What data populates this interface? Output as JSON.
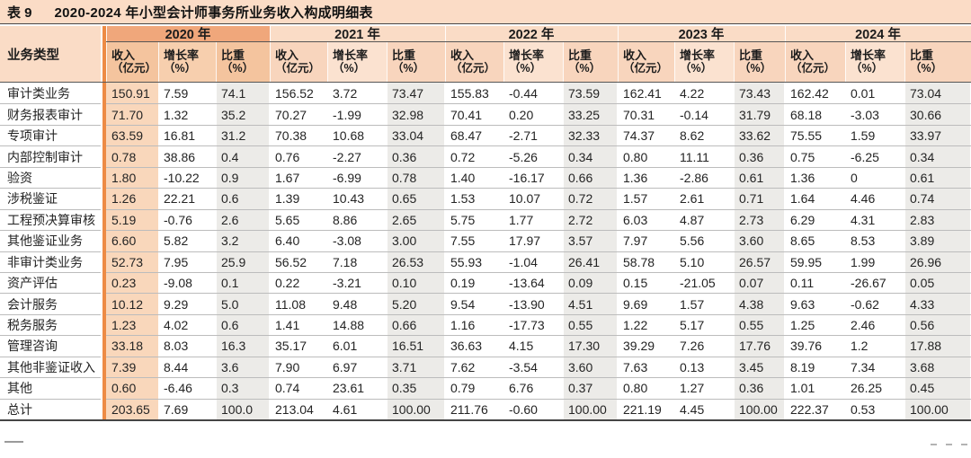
{
  "title": {
    "prefix": "表 9",
    "text": "2020-2024 年小型会计师事务所业务收入构成明细表"
  },
  "table": {
    "corner_header": "业务类型",
    "years": [
      "2020 年",
      "2021 年",
      "2022 年",
      "2023 年",
      "2024 年"
    ],
    "sub_columns": [
      {
        "line1": "收入",
        "line2": "（亿元）"
      },
      {
        "line1": "增长率",
        "line2": "（%）"
      },
      {
        "line1": "比重",
        "line2": "（%）"
      }
    ],
    "rows": [
      {
        "label": "审计类业务",
        "values": [
          "150.91",
          "7.59",
          "74.1",
          "156.52",
          "3.72",
          "73.47",
          "155.83",
          "-0.44",
          "73.59",
          "162.41",
          "4.22",
          "73.43",
          "162.42",
          "0.01",
          "73.04"
        ]
      },
      {
        "label": "财务报表审计",
        "values": [
          "71.70",
          "1.32",
          "35.2",
          "70.27",
          "-1.99",
          "32.98",
          "70.41",
          "0.20",
          "33.25",
          "70.31",
          "-0.14",
          "31.79",
          "68.18",
          "-3.03",
          "30.66"
        ]
      },
      {
        "label": "专项审计",
        "values": [
          "63.59",
          "16.81",
          "31.2",
          "70.38",
          "10.68",
          "33.04",
          "68.47",
          "-2.71",
          "32.33",
          "74.37",
          "8.62",
          "33.62",
          "75.55",
          "1.59",
          "33.97"
        ]
      },
      {
        "label": "内部控制审计",
        "values": [
          "0.78",
          "38.86",
          "0.4",
          "0.76",
          "-2.27",
          "0.36",
          "0.72",
          "-5.26",
          "0.34",
          "0.80",
          "11.11",
          "0.36",
          "0.75",
          "-6.25",
          "0.34"
        ]
      },
      {
        "label": "验资",
        "values": [
          "1.80",
          "-10.22",
          "0.9",
          "1.67",
          "-6.99",
          "0.78",
          "1.40",
          "-16.17",
          "0.66",
          "1.36",
          "-2.86",
          "0.61",
          "1.36",
          "0",
          "0.61"
        ]
      },
      {
        "label": "涉税鉴证",
        "values": [
          "1.26",
          "22.21",
          "0.6",
          "1.39",
          "10.43",
          "0.65",
          "1.53",
          "10.07",
          "0.72",
          "1.57",
          "2.61",
          "0.71",
          "1.64",
          "4.46",
          "0.74"
        ]
      },
      {
        "label": "工程预决算审核",
        "values": [
          "5.19",
          "-0.76",
          "2.6",
          "5.65",
          "8.86",
          "2.65",
          "5.75",
          "1.77",
          "2.72",
          "6.03",
          "4.87",
          "2.73",
          "6.29",
          "4.31",
          "2.83"
        ]
      },
      {
        "label": "其他鉴证业务",
        "values": [
          "6.60",
          "5.82",
          "3.2",
          "6.40",
          "-3.08",
          "3.00",
          "7.55",
          "17.97",
          "3.57",
          "7.97",
          "5.56",
          "3.60",
          "8.65",
          "8.53",
          "3.89"
        ]
      },
      {
        "label": "非审计类业务",
        "values": [
          "52.73",
          "7.95",
          "25.9",
          "56.52",
          "7.18",
          "26.53",
          "55.93",
          "-1.04",
          "26.41",
          "58.78",
          "5.10",
          "26.57",
          "59.95",
          "1.99",
          "26.96"
        ]
      },
      {
        "label": "资产评估",
        "values": [
          "0.23",
          "-9.08",
          "0.1",
          "0.22",
          "-3.21",
          "0.10",
          "0.19",
          "-13.64",
          "0.09",
          "0.15",
          "-21.05",
          "0.07",
          "0.11",
          "-26.67",
          "0.05"
        ]
      },
      {
        "label": "会计服务",
        "values": [
          "10.12",
          "9.29",
          "5.0",
          "11.08",
          "9.48",
          "5.20",
          "9.54",
          "-13.90",
          "4.51",
          "9.69",
          "1.57",
          "4.38",
          "9.63",
          "-0.62",
          "4.33"
        ]
      },
      {
        "label": "税务服务",
        "values": [
          "1.23",
          "4.02",
          "0.6",
          "1.41",
          "14.88",
          "0.66",
          "1.16",
          "-17.73",
          "0.55",
          "1.22",
          "5.17",
          "0.55",
          "1.25",
          "2.46",
          "0.56"
        ]
      },
      {
        "label": "管理咨询",
        "values": [
          "33.18",
          "8.03",
          "16.3",
          "35.17",
          "6.01",
          "16.51",
          "36.63",
          "4.15",
          "17.30",
          "39.29",
          "7.26",
          "17.76",
          "39.76",
          "1.2",
          "17.88"
        ]
      },
      {
        "label": "其他非鉴证收入",
        "values": [
          "7.39",
          "8.44",
          "3.6",
          "7.90",
          "6.97",
          "3.71",
          "7.62",
          "-3.54",
          "3.60",
          "7.63",
          "0.13",
          "3.45",
          "8.19",
          "7.34",
          "3.68"
        ]
      },
      {
        "label": "其他",
        "values": [
          "0.60",
          "-6.46",
          "0.3",
          "0.74",
          "23.61",
          "0.35",
          "0.79",
          "6.76",
          "0.37",
          "0.80",
          "1.27",
          "0.36",
          "1.01",
          "26.25",
          "0.45"
        ]
      },
      {
        "label": "总计",
        "values": [
          "203.65",
          "7.69",
          "100.0",
          "213.04",
          "4.61",
          "100.00",
          "211.76",
          "-0.60",
          "100.00",
          "221.19",
          "4.45",
          "100.00",
          "222.37",
          "0.53",
          "100.00"
        ]
      }
    ]
  },
  "icons": {
    "footer_left": "short-dash",
    "page_indicator": "three-dashes"
  },
  "colors": {
    "accent_bar": "#ED8B45",
    "title_bg": "#FBDCC6",
    "hdr_bg": "#FADCC6",
    "y2020_hdr_bg": "#F0A77B",
    "sub_bg": "#F8D5BD",
    "sub_light_bg": "#FBE2D0",
    "y2020_sub_bg": "#F4C49E",
    "y2020_sub_light_bg": "#F7CFAE",
    "y2020_col_bg": "#F9D7BB",
    "share_col_bg": "#ECEBE8",
    "row_divider": "#BCBCBC",
    "table_border": "#454545"
  }
}
